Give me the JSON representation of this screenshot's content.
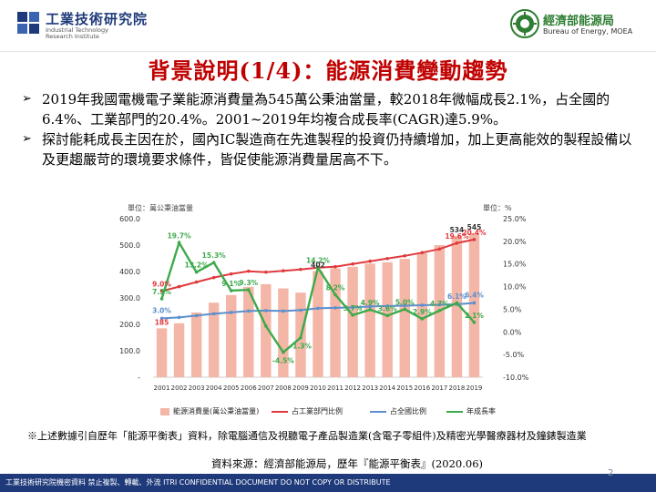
{
  "header": {
    "left_logo_cn": "工業技術研究院",
    "left_logo_en": [
      "Industrial Technology",
      "Research Institute"
    ],
    "right_logo_cn": "經濟部能源局",
    "right_logo_en": "Bureau of Energy, MOEA"
  },
  "title": "背景說明(1/4)：能源消費變動趨勢",
  "bullets": [
    "2019年我國電機電子業能源消費量為545萬公秉油當量，較2018年微幅成長2.1%，占全國的 6.4%、工業部門的20.4%。2001~2019年均複合成長率(CAGR)達5.9%。",
    "探討能耗成長主因在於，國內IC製造商在先進製程的投資仍持續增加，加上更高能效的製程設備以及更趨嚴苛的環境要求條件，皆促使能源消費量居高不下。"
  ],
  "bullet_icon": "arrow-bullet-icon",
  "unit_left": "單位：萬公秉油當量",
  "unit_right": "單位：%",
  "chart_data": {
    "type": "bar",
    "categories": [
      "2001",
      "2002",
      "2003",
      "2004",
      "2005",
      "2006",
      "2007",
      "2008",
      "2009",
      "2010",
      "2011",
      "2012",
      "2013",
      "2014",
      "2015",
      "2016",
      "2017",
      "2018",
      "2019"
    ],
    "series": [
      {
        "name": "能源消費量(萬公秉油當量)",
        "kind": "bar",
        "axis": "left",
        "color": "#f4b6a6",
        "values": [
          185,
          204,
          245,
          282,
          311,
          342,
          352,
          336,
          320,
          402,
          412,
          418,
          430,
          435,
          448,
          470,
          500,
          534,
          545
        ]
      },
      {
        "name": "占工業部門比例",
        "kind": "line",
        "axis": "right",
        "color": "#e0393e",
        "values": [
          9.0,
          10.0,
          11.0,
          12.0,
          12.8,
          13.4,
          13.2,
          13.5,
          13.8,
          14.2,
          14.4,
          15.0,
          15.6,
          16.2,
          16.8,
          17.5,
          18.3,
          19.6,
          20.4
        ]
      },
      {
        "name": "占全國比例",
        "kind": "line",
        "axis": "right",
        "color": "#5b8fce",
        "values": [
          3.0,
          3.2,
          3.6,
          4.0,
          4.3,
          4.6,
          4.7,
          4.6,
          4.8,
          5.2,
          5.3,
          5.4,
          5.6,
          5.7,
          5.8,
          5.9,
          6.0,
          6.1,
          6.4
        ]
      },
      {
        "name": "年成長率",
        "kind": "line",
        "axis": "right",
        "color": "#3caa4a",
        "values": [
          7.3,
          19.7,
          13.2,
          15.3,
          9.1,
          9.3,
          1.3,
          -4.5,
          -1.3,
          14.2,
          8.2,
          3.7,
          4.9,
          3.6,
          5.0,
          2.9,
          4.7,
          6.4,
          2.1
        ]
      }
    ],
    "y_left": {
      "ticks": [
        "600.0",
        "500.0",
        "400.0",
        "300.0",
        "200.0",
        "100.0",
        "-"
      ],
      "ylim": [
        0,
        600
      ]
    },
    "y_right": {
      "ticks": [
        "25.0%",
        "20.0%",
        "15.0%",
        "10.0%",
        "5.0%",
        "0.0%",
        "-5.0%",
        "-10.0%"
      ],
      "ylim": [
        -10,
        25
      ]
    },
    "annotations": [
      {
        "text": "19.7%",
        "color": "#3caa4a"
      },
      {
        "text": "15.3%",
        "color": "#3caa4a"
      },
      {
        "text": "13.2%",
        "color": "#3caa4a"
      },
      {
        "text": "14.2%",
        "color": "#3caa4a"
      },
      {
        "text": "9.1%",
        "color": "#3caa4a"
      },
      {
        "text": "9.3%",
        "color": "#3caa4a"
      },
      {
        "text": "8.2%",
        "color": "#3caa4a"
      },
      {
        "text": "7.3%",
        "color": "#3caa4a"
      },
      {
        "text": "4.0%",
        "color": "#3caa4a"
      },
      {
        "text": "4.9%",
        "color": "#3caa4a"
      },
      {
        "text": "3.7%",
        "color": "#3caa4a"
      },
      {
        "text": "3.6%",
        "color": "#3caa4a"
      },
      {
        "text": "4.8%",
        "color": "#3caa4a"
      },
      {
        "text": "5.0%",
        "color": "#3caa4a"
      },
      {
        "text": "2.9%",
        "color": "#3caa4a"
      },
      {
        "text": "4.7%",
        "color": "#3caa4a"
      },
      {
        "text": "2.1%",
        "color": "#3caa4a"
      },
      {
        "text": "-1.3%",
        "color": "#3caa4a"
      },
      {
        "text": "-4.5%",
        "color": "#3caa4a"
      },
      {
        "text": "-1.4%",
        "color": "#3caa4a"
      },
      {
        "text": "9.0%",
        "color": "#e0393e"
      },
      {
        "text": "19.6%",
        "color": "#e0393e"
      },
      {
        "text": "20.4%",
        "color": "#e0393e"
      },
      {
        "text": "3.0%",
        "color": "#5b8fce"
      },
      {
        "text": "6.1%",
        "color": "#5b8fce"
      },
      {
        "text": "6.4%",
        "color": "#5b8fce"
      },
      {
        "text": "185",
        "color": "#e0393e"
      },
      {
        "text": "402",
        "color": "#333333"
      },
      {
        "text": "534",
        "color": "#333333"
      },
      {
        "text": "545",
        "color": "#333333"
      }
    ],
    "legend": [
      "能源消費量(萬公秉油當量)",
      "占工業部門比例",
      "占全國比例",
      "年成長率"
    ],
    "legend_position": "bottom",
    "grid": false
  },
  "note": "※上述數據引自歷年「能源平衡表」資料，除電腦通信及視聽電子產品製造業(含電子零組件)及精密光學醫療器材及鐘錶製造業",
  "source": "資料來源：經濟部能源局，歷年『能源平衡表』(2020.06)",
  "footer": {
    "text": "工業技術研究院機密資料 禁止複製、轉載、外流 ITRI CONFIDENTIAL DOCUMENT DO NOT COPY OR DISTRIBUTE",
    "page": "2"
  }
}
